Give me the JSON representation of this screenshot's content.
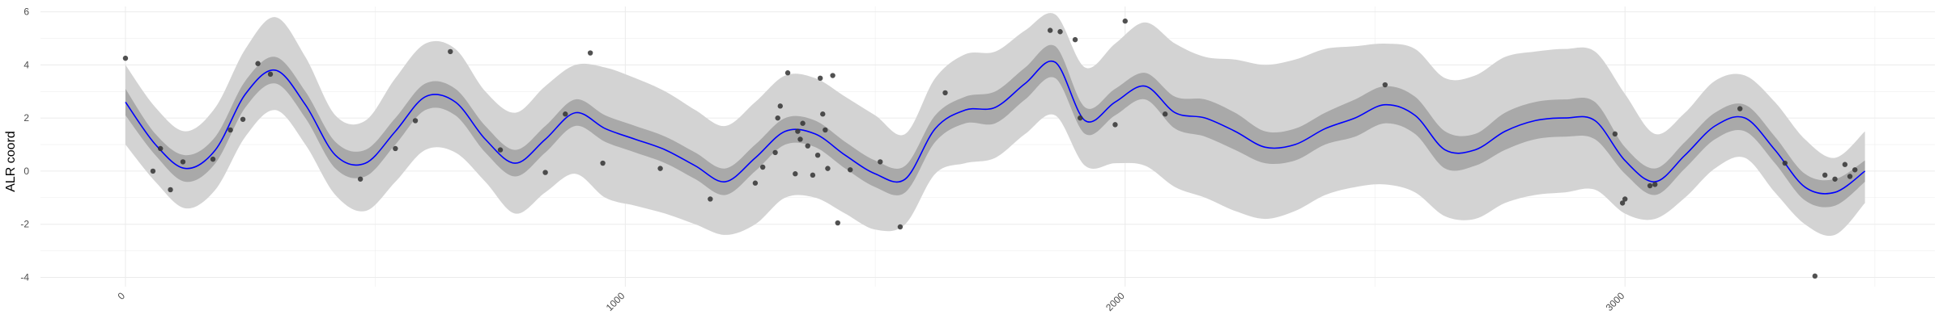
{
  "chart_data": {
    "type": "line",
    "title": "",
    "xlabel": "",
    "ylabel": "ALR coord",
    "xlim": [
      -170,
      3620
    ],
    "ylim": [
      -4.35,
      6.2
    ],
    "x_ticks": [
      0,
      1000,
      2000,
      3000
    ],
    "y_ticks": [
      -4,
      -2,
      0,
      2,
      4,
      6
    ],
    "grid": true,
    "colors": {
      "mean_line": "#0000ff",
      "inner_band": "#a9a9a9",
      "outer_band": "#d3d3d3",
      "points": "#333333",
      "grid": "#ebebeb"
    },
    "mean_curve": {
      "x": [
        0,
        60,
        120,
        180,
        240,
        300,
        360,
        420,
        480,
        540,
        600,
        660,
        720,
        780,
        840,
        900,
        960,
        1020,
        1080,
        1140,
        1200,
        1260,
        1320,
        1380,
        1440,
        1500,
        1560,
        1620,
        1680,
        1740,
        1800,
        1860,
        1920,
        1980,
        2040,
        2100,
        2160,
        2220,
        2280,
        2340,
        2400,
        2460,
        2520,
        2580,
        2640,
        2700,
        2760,
        2820,
        2880,
        2940,
        3000,
        3060,
        3120,
        3180,
        3240,
        3300,
        3360,
        3420,
        3480
      ],
      "y": [
        2.6,
        1.0,
        0.1,
        0.8,
        2.9,
        3.8,
        2.5,
        0.6,
        0.3,
        1.5,
        2.8,
        2.6,
        1.2,
        0.3,
        1.2,
        2.2,
        1.6,
        1.2,
        0.8,
        0.2,
        -0.4,
        0.5,
        1.5,
        1.4,
        0.6,
        -0.1,
        -0.3,
        1.6,
        2.3,
        2.4,
        3.3,
        4.1,
        1.9,
        2.6,
        3.2,
        2.2,
        2.0,
        1.5,
        0.9,
        1.0,
        1.6,
        2.0,
        2.5,
        2.1,
        0.8,
        0.8,
        1.5,
        1.9,
        2.0,
        1.9,
        0.4,
        -0.4,
        0.6,
        1.7,
        2.0,
        0.8,
        -0.6,
        -0.8,
        0.0
      ],
      "inner_lower": [
        2.1,
        0.6,
        -0.4,
        0.3,
        2.4,
        3.3,
        2.0,
        0.1,
        -0.2,
        1.0,
        2.3,
        2.1,
        0.7,
        -0.2,
        0.7,
        1.7,
        1.1,
        0.7,
        0.3,
        -0.3,
        -0.9,
        0.0,
        1.0,
        0.9,
        0.1,
        -0.6,
        -0.8,
        1.1,
        1.8,
        1.8,
        2.7,
        3.5,
        1.4,
        2.1,
        2.7,
        1.6,
        1.3,
        0.8,
        0.3,
        0.4,
        1.0,
        1.3,
        1.8,
        1.4,
        0.1,
        0.2,
        0.8,
        1.2,
        1.3,
        1.2,
        -0.1,
        -0.9,
        0.1,
        1.2,
        1.5,
        0.3,
        -1.1,
        -1.3,
        -0.4
      ],
      "inner_upper": [
        3.1,
        1.4,
        0.6,
        1.3,
        3.4,
        4.3,
        3.0,
        1.1,
        0.8,
        2.0,
        3.3,
        3.1,
        1.7,
        0.8,
        1.7,
        2.7,
        2.1,
        1.7,
        1.3,
        0.7,
        0.1,
        1.0,
        2.0,
        1.9,
        1.1,
        0.4,
        0.2,
        2.1,
        2.8,
        3.0,
        3.9,
        4.7,
        2.4,
        3.1,
        3.7,
        2.8,
        2.7,
        2.2,
        1.5,
        1.6,
        2.2,
        2.7,
        3.2,
        2.8,
        1.5,
        1.4,
        2.2,
        2.6,
        2.7,
        2.6,
        0.9,
        0.1,
        1.1,
        2.2,
        2.5,
        1.3,
        -0.1,
        -0.3,
        0.4
      ],
      "outer_lower": [
        1.0,
        -0.4,
        -1.4,
        -0.7,
        1.3,
        2.3,
        1.0,
        -0.9,
        -1.5,
        -0.4,
        0.8,
        0.7,
        -0.4,
        -1.6,
        -0.8,
        -0.1,
        -1.0,
        -1.3,
        -1.6,
        -2.0,
        -2.4,
        -2.0,
        -1.0,
        -1.0,
        -1.6,
        -2.2,
        -2.0,
        -0.1,
        0.3,
        0.5,
        1.4,
        2.1,
        0.2,
        0.3,
        0.2,
        -0.6,
        -1.0,
        -1.5,
        -1.8,
        -1.5,
        -0.9,
        -0.6,
        -0.5,
        -0.8,
        -1.7,
        -1.8,
        -1.2,
        -0.9,
        -0.8,
        -0.7,
        -1.6,
        -1.8,
        -1.0,
        0.1,
        0.5,
        -0.8,
        -2.0,
        -2.4,
        -1.2
      ],
      "outer_upper": [
        4.0,
        2.4,
        1.5,
        2.4,
        4.6,
        5.8,
        4.3,
        2.1,
        1.9,
        3.5,
        4.8,
        4.6,
        3.0,
        2.2,
        3.2,
        4.0,
        3.9,
        3.5,
        3.0,
        2.3,
        1.7,
        2.6,
        3.6,
        3.5,
        2.8,
        2.1,
        1.4,
        3.5,
        4.4,
        4.5,
        5.3,
        5.9,
        3.9,
        4.8,
        5.6,
        4.8,
        4.3,
        4.2,
        4.0,
        4.2,
        4.6,
        4.7,
        4.8,
        4.6,
        3.5,
        3.6,
        4.3,
        4.5,
        4.6,
        4.5,
        2.9,
        1.4,
        2.2,
        3.4,
        3.6,
        2.6,
        1.2,
        0.5,
        1.5
      ]
    },
    "points": {
      "x": [
        0,
        55,
        70,
        90,
        115,
        175,
        210,
        235,
        265,
        290,
        470,
        540,
        580,
        650,
        750,
        840,
        880,
        930,
        955,
        1070,
        1170,
        1260,
        1275,
        1300,
        1305,
        1310,
        1325,
        1340,
        1345,
        1350,
        1355,
        1365,
        1375,
        1385,
        1390,
        1395,
        1400,
        1405,
        1415,
        1425,
        1450,
        1510,
        1550,
        1640,
        1850,
        1870,
        1900,
        1910,
        1980,
        2000,
        2080,
        2520,
        2980,
        2995,
        3000,
        3050,
        3060,
        3230,
        3320,
        3380,
        3400,
        3420,
        3440,
        3450,
        3460
      ],
      "y": [
        4.25,
        0.0,
        0.85,
        -0.7,
        0.35,
        0.45,
        1.55,
        1.95,
        4.05,
        3.65,
        -0.3,
        0.85,
        1.9,
        4.5,
        0.8,
        -0.05,
        2.15,
        4.45,
        0.3,
        0.1,
        -1.05,
        -0.45,
        0.15,
        0.7,
        2.0,
        2.45,
        3.7,
        -0.1,
        1.5,
        1.2,
        1.8,
        0.95,
        -0.15,
        0.6,
        3.5,
        2.15,
        1.55,
        0.1,
        3.6,
        -1.95,
        0.05,
        0.35,
        -2.1,
        2.95,
        5.3,
        5.25,
        4.95,
        2.0,
        1.75,
        5.65,
        2.15,
        3.25,
        1.4,
        -1.2,
        -1.05,
        -0.55,
        -0.5,
        2.35,
        0.3,
        -3.95,
        -0.15,
        -0.3,
        0.25,
        -0.2,
        0.05
      ]
    }
  }
}
